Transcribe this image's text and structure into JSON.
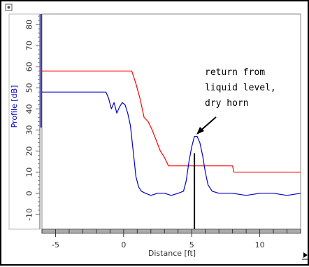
{
  "chart_data": {
    "type": "line",
    "xlabel": "Distance [ft]",
    "ylabel": "Profile [dB]",
    "xlim": [
      -6,
      13
    ],
    "ylim": [
      -17,
      85
    ],
    "x_ticks": [
      -5,
      0,
      5,
      10
    ],
    "y_ticks": [
      -10,
      0,
      10,
      20,
      30,
      40,
      50,
      60,
      70,
      80
    ],
    "grid": false,
    "series": [
      {
        "color": "#ff0000",
        "points": [
          [
            -6.0,
            58
          ],
          [
            0.6,
            58
          ],
          [
            0.9,
            52
          ],
          [
            1.2,
            45
          ],
          [
            1.5,
            36
          ],
          [
            1.8,
            34
          ],
          [
            2.1,
            30
          ],
          [
            2.4,
            25
          ],
          [
            2.7,
            20
          ],
          [
            3.0,
            17
          ],
          [
            3.3,
            13
          ],
          [
            3.5,
            13
          ],
          [
            8.0,
            13
          ],
          [
            8.1,
            10
          ],
          [
            13.0,
            10
          ]
        ]
      },
      {
        "color": "#0000cc",
        "points": [
          [
            -6.0,
            48
          ],
          [
            -1.3,
            48
          ],
          [
            -1.1,
            45
          ],
          [
            -0.9,
            40
          ],
          [
            -0.7,
            43
          ],
          [
            -0.5,
            38
          ],
          [
            -0.3,
            41
          ],
          [
            -0.1,
            43
          ],
          [
            0.1,
            42
          ],
          [
            0.3,
            38
          ],
          [
            0.5,
            32
          ],
          [
            0.7,
            20
          ],
          [
            0.9,
            8
          ],
          [
            1.1,
            3
          ],
          [
            1.3,
            1
          ],
          [
            1.6,
            0
          ],
          [
            2.0,
            -1
          ],
          [
            2.5,
            0
          ],
          [
            3.0,
            0
          ],
          [
            3.5,
            -1
          ],
          [
            4.0,
            0
          ],
          [
            4.4,
            1
          ],
          [
            4.6,
            6
          ],
          [
            4.8,
            15
          ],
          [
            5.0,
            22
          ],
          [
            5.2,
            27
          ],
          [
            5.4,
            27
          ],
          [
            5.6,
            24
          ],
          [
            5.8,
            18
          ],
          [
            6.0,
            10
          ],
          [
            6.2,
            4
          ],
          [
            6.5,
            1
          ],
          [
            7.0,
            0
          ],
          [
            8.0,
            0
          ],
          [
            9.0,
            -1
          ],
          [
            10.0,
            0
          ],
          [
            11.0,
            0
          ],
          [
            12.0,
            -1
          ],
          [
            13.0,
            0
          ]
        ]
      }
    ],
    "annotations": [
      {
        "lines": [
          "return from",
          "liquid level,",
          "dry horn"
        ]
      }
    ],
    "marker_line_x": 5.2
  }
}
